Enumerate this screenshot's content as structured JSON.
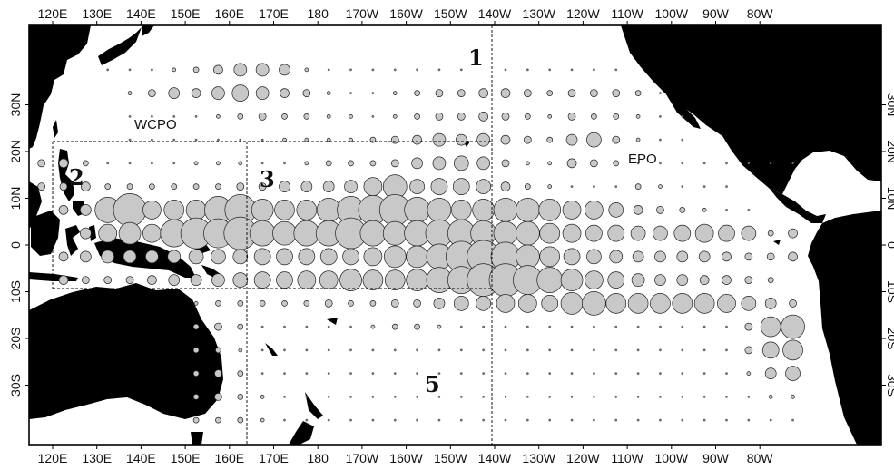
{
  "axes": {
    "top_lon_labels": [
      "120E",
      "130E",
      "140E",
      "150E",
      "160E",
      "170E",
      "180",
      "170W",
      "160W",
      "150W",
      "140W",
      "130W",
      "120W",
      "110W",
      "100W",
      "90W",
      "80W"
    ],
    "bottom_lon_labels": [
      "120E",
      "130E",
      "140E",
      "150E",
      "160E",
      "170E",
      "180",
      "170W",
      "160W",
      "150W",
      "140W",
      "130W",
      "120W",
      "110W",
      "100W",
      "90W",
      "80W"
    ],
    "left_lat_labels": [
      "30N",
      "20N",
      "10N",
      "0",
      "10S",
      "20S",
      "30S"
    ],
    "right_lat_labels": [
      "30N",
      "20N",
      "10N",
      "0",
      "10S",
      "20S",
      "30S"
    ]
  },
  "regions": {
    "wcpo_label": "WCPO",
    "epo_label": "EPO",
    "numbers": [
      "1",
      "2",
      "3",
      "5"
    ]
  },
  "colors": {
    "land": "#000000",
    "bubble_fill": "#c8c8c8",
    "bubble_stroke": "#222222",
    "frame": "#000000"
  }
}
